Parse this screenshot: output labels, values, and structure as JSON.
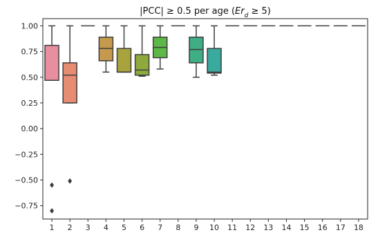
{
  "chart_data": {
    "type": "boxplot",
    "title_prefix": "|PCC| ≥ 0.5 per age (",
    "title_var": "Er",
    "title_sub": "d",
    "title_suffix": " ≥ 5)",
    "xlabel": "",
    "ylabel": "",
    "ylim": [
      -0.88,
      1.07
    ],
    "yticks": [
      1.0,
      0.75,
      0.5,
      0.25,
      0.0,
      -0.25,
      -0.5,
      -0.75
    ],
    "ytick_labels": [
      "1.00",
      "0.75",
      "0.50",
      "0.25",
      "0.00",
      "−0.25",
      "−0.50",
      "−0.75"
    ],
    "categories": [
      "1",
      "2",
      "3",
      "4",
      "5",
      "6",
      "7",
      "8",
      "9",
      "10",
      "11",
      "12",
      "13",
      "14",
      "15",
      "16",
      "17",
      "18"
    ],
    "boxes": [
      {
        "category": "1",
        "whisker_low": 0.47,
        "q1": 0.47,
        "median": 0.47,
        "q3": 0.81,
        "whisker_high": 1.0,
        "outliers": [
          -0.55,
          -0.8
        ],
        "color": "#e88f9f"
      },
      {
        "category": "2",
        "whisker_low": 0.25,
        "q1": 0.25,
        "median": 0.52,
        "q3": 0.64,
        "whisker_high": 1.0,
        "outliers": [
          -0.51
        ],
        "color": "#e58c72"
      },
      {
        "category": "3",
        "whisker_low": 1.0,
        "q1": 1.0,
        "median": 1.0,
        "q3": 1.0,
        "whisker_high": 1.0,
        "outliers": [],
        "color": "#c9a05a"
      },
      {
        "category": "4",
        "whisker_low": 0.55,
        "q1": 0.66,
        "median": 0.78,
        "q3": 0.89,
        "whisker_high": 1.0,
        "outliers": [],
        "color": "#c59a4e"
      },
      {
        "category": "5",
        "whisker_low": 0.55,
        "q1": 0.55,
        "median": 0.55,
        "q3": 0.78,
        "whisker_high": 1.0,
        "outliers": [],
        "color": "#a8a33c"
      },
      {
        "category": "6",
        "whisker_low": 0.51,
        "q1": 0.52,
        "median": 0.57,
        "q3": 0.72,
        "whisker_high": 1.0,
        "outliers": [],
        "color": "#8eaa3c"
      },
      {
        "category": "7",
        "whisker_low": 0.58,
        "q1": 0.69,
        "median": 0.79,
        "q3": 0.89,
        "whisker_high": 1.0,
        "outliers": [],
        "color": "#5db847"
      },
      {
        "category": "8",
        "whisker_low": 1.0,
        "q1": 1.0,
        "median": 1.0,
        "q3": 1.0,
        "whisker_high": 1.0,
        "outliers": [],
        "color": "#4db070"
      },
      {
        "category": "9",
        "whisker_low": 0.5,
        "q1": 0.64,
        "median": 0.77,
        "q3": 0.89,
        "whisker_high": 1.0,
        "outliers": [],
        "color": "#3fae84"
      },
      {
        "category": "10",
        "whisker_low": 0.52,
        "q1": 0.54,
        "median": 0.55,
        "q3": 0.78,
        "whisker_high": 1.0,
        "outliers": [],
        "color": "#3aa99e"
      },
      {
        "category": "11",
        "whisker_low": 1.0,
        "q1": 1.0,
        "median": 1.0,
        "q3": 1.0,
        "whisker_high": 1.0,
        "outliers": [],
        "color": "#3aa5b0"
      },
      {
        "category": "12",
        "whisker_low": 1.0,
        "q1": 1.0,
        "median": 1.0,
        "q3": 1.0,
        "whisker_high": 1.0,
        "outliers": [],
        "color": "#3ca0bd"
      },
      {
        "category": "13",
        "whisker_low": 1.0,
        "q1": 1.0,
        "median": 1.0,
        "q3": 1.0,
        "whisker_high": 1.0,
        "outliers": [],
        "color": "#4a98cc"
      },
      {
        "category": "14",
        "whisker_low": 1.0,
        "q1": 1.0,
        "median": 1.0,
        "q3": 1.0,
        "whisker_high": 1.0,
        "outliers": [],
        "color": "#6c8fd6"
      },
      {
        "category": "15",
        "whisker_low": 1.0,
        "q1": 1.0,
        "median": 1.0,
        "q3": 1.0,
        "whisker_high": 1.0,
        "outliers": [],
        "color": "#9a86d8"
      },
      {
        "category": "16",
        "whisker_low": 1.0,
        "q1": 1.0,
        "median": 1.0,
        "q3": 1.0,
        "whisker_high": 1.0,
        "outliers": [],
        "color": "#c27dd6"
      },
      {
        "category": "17",
        "whisker_low": 1.0,
        "q1": 1.0,
        "median": 1.0,
        "q3": 1.0,
        "whisker_high": 1.0,
        "outliers": [],
        "color": "#dc79c4"
      },
      {
        "category": "18",
        "whisker_low": 1.0,
        "q1": 1.0,
        "median": 1.0,
        "q3": 1.0,
        "whisker_high": 1.0,
        "outliers": [],
        "color": "#e57fae"
      }
    ],
    "line_color": "#3d3d3d",
    "grid": false,
    "legend": "none"
  }
}
